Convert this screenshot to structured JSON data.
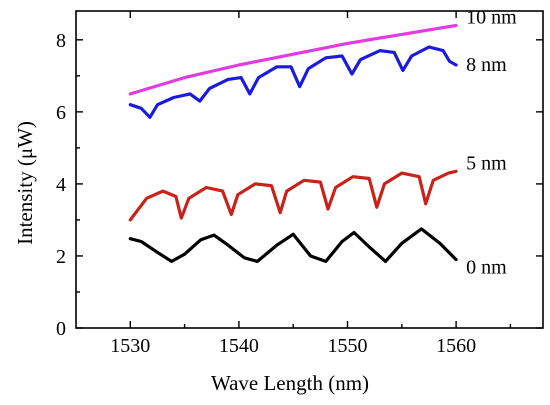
{
  "chart_data": {
    "type": "line",
    "title": "",
    "xlabel": "Wave Length (nm)",
    "ylabel": "Intensity (μW)",
    "xlim": [
      1525,
      1568
    ],
    "ylim": [
      0,
      8.8
    ],
    "xticks": [
      1530,
      1540,
      1550,
      1560
    ],
    "yticks": [
      0,
      2,
      4,
      6,
      8
    ],
    "grid": false,
    "series": [
      {
        "name": "10 nm",
        "color": "#e23be0",
        "x": [
          1530,
          1535,
          1540,
          1545,
          1550,
          1555,
          1560
        ],
        "y": [
          6.5,
          6.95,
          7.3,
          7.6,
          7.9,
          8.15,
          8.4
        ]
      },
      {
        "name": "8 nm",
        "color": "#1a1ae0",
        "x": [
          1530,
          1531,
          1531.8,
          1532.5,
          1534,
          1535.5,
          1536.4,
          1537.3,
          1539,
          1540.2,
          1541.0,
          1541.8,
          1543.5,
          1544.8,
          1545.6,
          1546.4,
          1548,
          1549.5,
          1550.4,
          1551.2,
          1553,
          1554.3,
          1555.1,
          1555.9,
          1557.5,
          1558.8,
          1559.4,
          1560
        ],
        "y": [
          6.2,
          6.1,
          5.85,
          6.2,
          6.4,
          6.5,
          6.3,
          6.65,
          6.9,
          6.95,
          6.5,
          6.95,
          7.25,
          7.25,
          6.7,
          7.2,
          7.5,
          7.55,
          7.05,
          7.45,
          7.7,
          7.65,
          7.15,
          7.55,
          7.8,
          7.7,
          7.4,
          7.3
        ]
      },
      {
        "name": "5 nm",
        "color": "#c8221a",
        "x": [
          1530,
          1531.5,
          1533,
          1534.2,
          1534.7,
          1535.4,
          1537,
          1538.5,
          1539.3,
          1539.9,
          1541.5,
          1543.0,
          1543.8,
          1544.4,
          1546,
          1547.5,
          1548.2,
          1548.9,
          1550.5,
          1552.0,
          1552.7,
          1553.4,
          1555,
          1556.6,
          1557.2,
          1557.9,
          1559.3,
          1560
        ],
        "y": [
          3.0,
          3.6,
          3.8,
          3.65,
          3.05,
          3.6,
          3.9,
          3.8,
          3.15,
          3.7,
          4.0,
          3.95,
          3.2,
          3.8,
          4.1,
          4.05,
          3.3,
          3.9,
          4.2,
          4.15,
          3.35,
          4.0,
          4.3,
          4.2,
          3.45,
          4.1,
          4.3,
          4.35
        ]
      },
      {
        "name": "0 nm",
        "color": "#000000",
        "x": [
          1530,
          1531,
          1532.5,
          1533.8,
          1535,
          1536.5,
          1537.7,
          1539,
          1540.5,
          1541.7,
          1543.5,
          1545,
          1546.6,
          1548,
          1549.5,
          1550.6,
          1552,
          1553.5,
          1555,
          1556.8,
          1558.5,
          1560
        ],
        "y": [
          2.48,
          2.4,
          2.1,
          1.85,
          2.05,
          2.45,
          2.58,
          2.3,
          1.95,
          1.85,
          2.3,
          2.6,
          2.0,
          1.85,
          2.4,
          2.65,
          2.25,
          1.85,
          2.35,
          2.75,
          2.35,
          1.9
        ]
      }
    ]
  }
}
